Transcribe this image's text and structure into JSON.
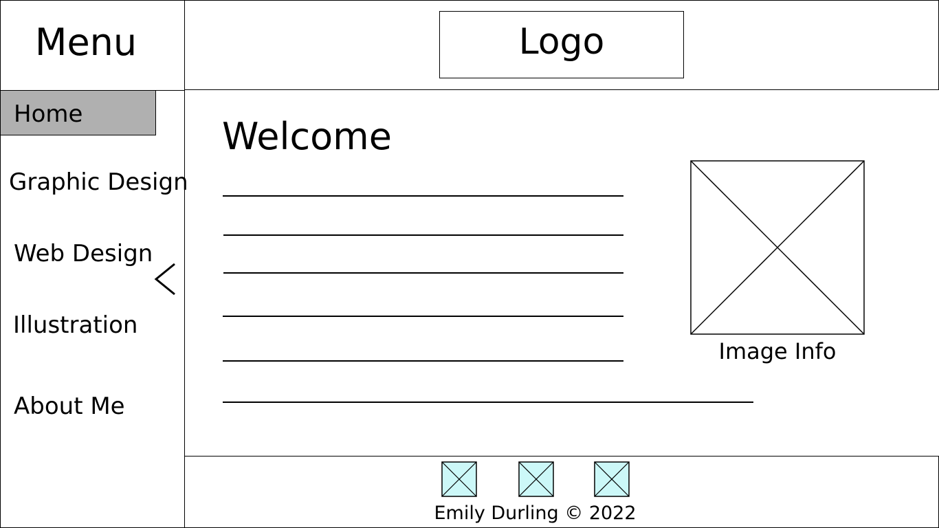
{
  "sidebar": {
    "title": "Menu",
    "items": [
      {
        "label": "Home",
        "active": true
      },
      {
        "label": "Graphic Design"
      },
      {
        "label": "Web Design"
      },
      {
        "label": "Illustration"
      },
      {
        "label": "About Me"
      }
    ],
    "active_color": "#b0b0b0",
    "collapse_icon": "chevron-left-icon"
  },
  "header": {
    "logo_text": "Logo"
  },
  "main": {
    "heading": "Welcome",
    "image_caption": "Image Info",
    "image_icon": "image-placeholder-icon"
  },
  "footer": {
    "social_icons": [
      "social-icon-1",
      "social-icon-2",
      "social-icon-3"
    ],
    "social_icon_fill": "#ccf8f8",
    "copyright": "Emily Durling © 2022"
  }
}
